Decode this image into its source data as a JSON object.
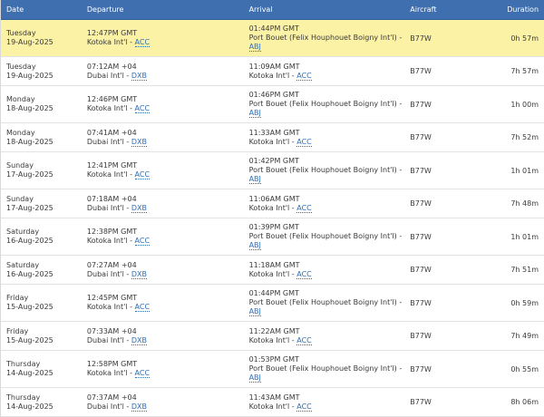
{
  "header": {
    "date": "Date",
    "departure": "Departure",
    "arrival": "Arrival",
    "aircraft": "Aircraft",
    "duration": "Duration"
  },
  "flights": [
    {
      "weekday": "Tuesday",
      "date": "19-Aug-2025",
      "dep_time": "12:47PM GMT",
      "dep_airport": "Kotoka Int'l",
      "dep_code": "ACC",
      "arr_time": "01:44PM GMT",
      "arr_airport": "Port Bouet (Felix Houphouet Boigny Int'l)",
      "arr_code": "ABJ",
      "aircraft": "B77W",
      "duration": "0h 57m"
    },
    {
      "weekday": "Tuesday",
      "date": "19-Aug-2025",
      "dep_time": "07:12AM +04",
      "dep_airport": "Dubai Int'l",
      "dep_code": "DXB",
      "arr_time": "11:09AM GMT",
      "arr_airport": "Kotoka Int'l",
      "arr_code": "ACC",
      "aircraft": "B77W",
      "duration": "7h 57m"
    },
    {
      "weekday": "Monday",
      "date": "18-Aug-2025",
      "dep_time": "12:46PM GMT",
      "dep_airport": "Kotoka Int'l",
      "dep_code": "ACC",
      "arr_time": "01:46PM GMT",
      "arr_airport": "Port Bouet (Felix Houphouet Boigny Int'l)",
      "arr_code": "ABJ",
      "aircraft": "B77W",
      "duration": "1h 00m"
    },
    {
      "weekday": "Monday",
      "date": "18-Aug-2025",
      "dep_time": "07:41AM +04",
      "dep_airport": "Dubai Int'l",
      "dep_code": "DXB",
      "arr_time": "11:33AM GMT",
      "arr_airport": "Kotoka Int'l",
      "arr_code": "ACC",
      "aircraft": "B77W",
      "duration": "7h 52m"
    },
    {
      "weekday": "Sunday",
      "date": "17-Aug-2025",
      "dep_time": "12:41PM GMT",
      "dep_airport": "Kotoka Int'l",
      "dep_code": "ACC",
      "arr_time": "01:42PM GMT",
      "arr_airport": "Port Bouet (Felix Houphouet Boigny Int'l)",
      "arr_code": "ABJ",
      "aircraft": "B77W",
      "duration": "1h 01m"
    },
    {
      "weekday": "Sunday",
      "date": "17-Aug-2025",
      "dep_time": "07:18AM +04",
      "dep_airport": "Dubai Int'l",
      "dep_code": "DXB",
      "arr_time": "11:06AM GMT",
      "arr_airport": "Kotoka Int'l",
      "arr_code": "ACC",
      "aircraft": "B77W",
      "duration": "7h 48m"
    },
    {
      "weekday": "Saturday",
      "date": "16-Aug-2025",
      "dep_time": "12:38PM GMT",
      "dep_airport": "Kotoka Int'l",
      "dep_code": "ACC",
      "arr_time": "01:39PM GMT",
      "arr_airport": "Port Bouet (Felix Houphouet Boigny Int'l)",
      "arr_code": "ABJ",
      "aircraft": "B77W",
      "duration": "1h 01m"
    },
    {
      "weekday": "Saturday",
      "date": "16-Aug-2025",
      "dep_time": "07:27AM +04",
      "dep_airport": "Dubai Int'l",
      "dep_code": "DXB",
      "arr_time": "11:18AM GMT",
      "arr_airport": "Kotoka Int'l",
      "arr_code": "ACC",
      "aircraft": "B77W",
      "duration": "7h 51m"
    },
    {
      "weekday": "Friday",
      "date": "15-Aug-2025",
      "dep_time": "12:45PM GMT",
      "dep_airport": "Kotoka Int'l",
      "dep_code": "ACC",
      "arr_time": "01:44PM GMT",
      "arr_airport": "Port Bouet (Felix Houphouet Boigny Int'l)",
      "arr_code": "ABJ",
      "aircraft": "B77W",
      "duration": "0h 59m"
    },
    {
      "weekday": "Friday",
      "date": "15-Aug-2025",
      "dep_time": "07:33AM +04",
      "dep_airport": "Dubai Int'l",
      "dep_code": "DXB",
      "arr_time": "11:22AM GMT",
      "arr_airport": "Kotoka Int'l",
      "arr_code": "ACC",
      "aircraft": "B77W",
      "duration": "7h 49m"
    },
    {
      "weekday": "Thursday",
      "date": "14-Aug-2025",
      "dep_time": "12:58PM GMT",
      "dep_airport": "Kotoka Int'l",
      "dep_code": "ACC",
      "arr_time": "01:53PM GMT",
      "arr_airport": "Port Bouet (Felix Houphouet Boigny Int'l)",
      "arr_code": "ABJ",
      "aircraft": "B77W",
      "duration": "0h 55m"
    },
    {
      "weekday": "Thursday",
      "date": "14-Aug-2025",
      "dep_time": "07:37AM +04",
      "dep_airport": "Dubai Int'l",
      "dep_code": "DXB",
      "arr_time": "11:43AM GMT",
      "arr_airport": "Kotoka Int'l",
      "arr_code": "ACC",
      "aircraft": "B77W",
      "duration": "8h 06m"
    }
  ],
  "colors": {
    "header_bg": "#3f6fae",
    "highlight_bg": "#fcf2a6",
    "link": "#2f6db3"
  }
}
